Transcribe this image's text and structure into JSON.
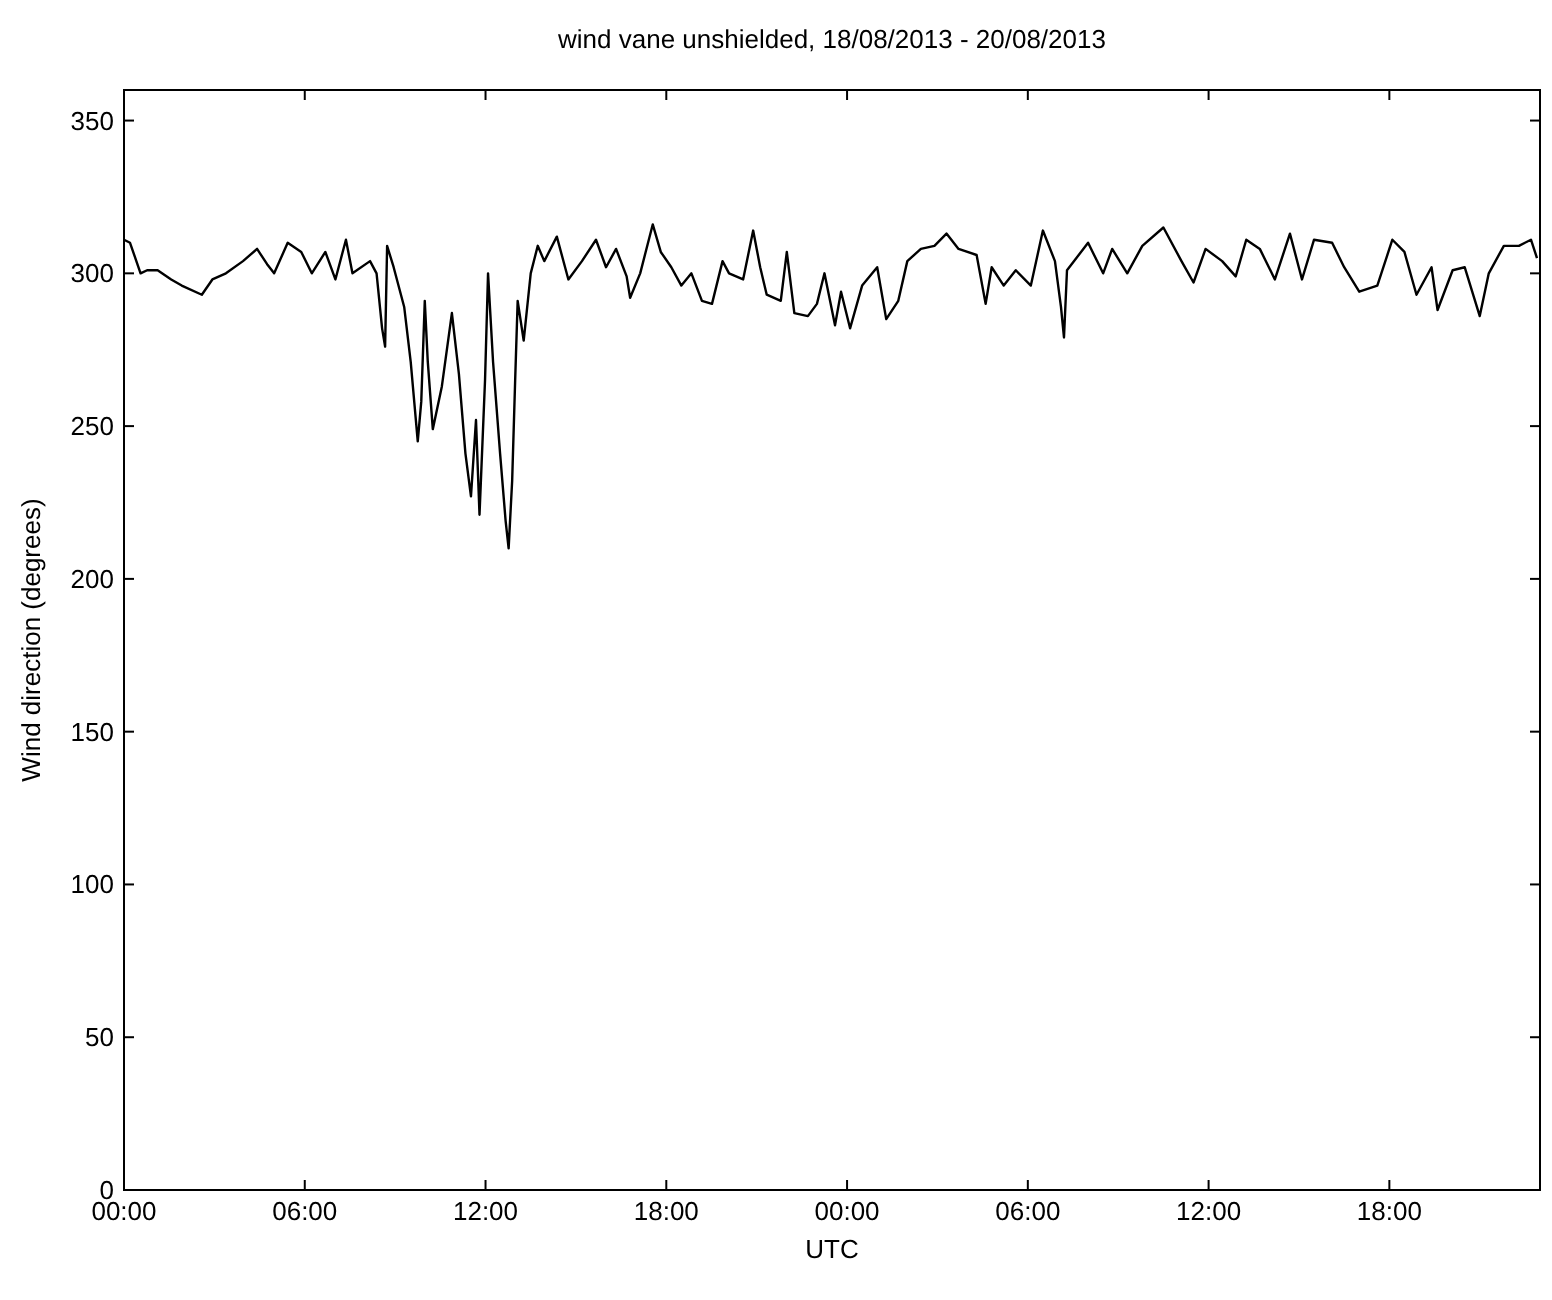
{
  "chart_data": {
    "type": "line",
    "title": "wind vane unshielded, 18/08/2013 - 20/08/2013",
    "xlabel": "UTC",
    "ylabel": "Wind direction (degrees)",
    "xlim": [
      "2013-08-18T00:00",
      "2013-08-19T23:00"
    ],
    "xticks": [
      {
        "value": "2013-08-18T00:00",
        "label": "00:00"
      },
      {
        "value": "2013-08-18T06:00",
        "label": "06:00"
      },
      {
        "value": "2013-08-18T12:00",
        "label": "12:00"
      },
      {
        "value": "2013-08-18T18:00",
        "label": "18:00"
      },
      {
        "value": "2013-08-19T00:00",
        "label": "00:00"
      },
      {
        "value": "2013-08-19T06:00",
        "label": "06:00"
      },
      {
        "value": "2013-08-19T12:00",
        "label": "12:00"
      },
      {
        "value": "2013-08-19T18:00",
        "label": "18:00"
      }
    ],
    "ylim": [
      0,
      360
    ],
    "yticks": [
      0,
      50,
      100,
      150,
      200,
      250,
      300,
      350
    ],
    "grid": false,
    "marker": "none",
    "line_style": "solid",
    "series": [
      {
        "color": "#000000",
        "x": [
          "2013-08-18T00:00",
          "2013-08-18T00:12",
          "2013-08-18T00:33",
          "2013-08-18T00:46",
          "2013-08-18T01:07",
          "2013-08-18T01:34",
          "2013-08-18T01:55",
          "2013-08-18T02:35",
          "2013-08-18T02:56",
          "2013-08-18T03:23",
          "2013-08-18T03:57",
          "2013-08-18T04:25",
          "2013-08-18T04:45",
          "2013-08-18T04:59",
          "2013-08-18T05:26",
          "2013-08-18T05:53",
          "2013-08-18T06:14",
          "2013-08-18T06:41",
          "2013-08-18T07:01",
          "2013-08-18T07:22",
          "2013-08-18T07:35",
          "2013-08-18T08:10",
          "2013-08-18T08:23",
          "2013-08-18T08:34",
          "2013-08-18T08:40",
          "2013-08-18T08:44",
          "2013-08-18T08:57",
          "2013-08-18T09:18",
          "2013-08-18T09:31",
          "2013-08-18T09:45",
          "2013-08-18T09:52",
          "2013-08-18T09:59",
          "2013-08-18T10:05",
          "2013-08-18T10:15",
          "2013-08-18T10:33",
          "2013-08-18T10:53",
          "2013-08-18T11:07",
          "2013-08-18T11:20",
          "2013-08-18T11:31",
          "2013-08-18T11:41",
          "2013-08-18T11:48",
          "2013-08-18T11:59",
          "2013-08-18T12:05",
          "2013-08-18T12:15",
          "2013-08-18T12:29",
          "2013-08-18T12:40",
          "2013-08-18T12:46",
          "2013-08-18T12:53",
          "2013-08-18T12:59",
          "2013-08-18T13:04",
          "2013-08-18T13:16",
          "2013-08-18T13:30",
          "2013-08-18T13:44",
          "2013-08-18T13:57",
          "2013-08-18T14:22",
          "2013-08-18T14:45",
          "2013-08-18T15:12",
          "2013-08-18T15:40",
          "2013-08-18T16:00",
          "2013-08-18T16:20",
          "2013-08-18T16:41",
          "2013-08-18T16:48",
          "2013-08-18T17:08",
          "2013-08-18T17:33",
          "2013-08-18T17:49",
          "2013-08-18T18:10",
          "2013-08-18T18:30",
          "2013-08-18T18:50",
          "2013-08-18T19:11",
          "2013-08-18T19:31",
          "2013-08-18T19:52",
          "2013-08-18T20:05",
          "2013-08-18T20:33",
          "2013-08-18T20:53",
          "2013-08-18T21:07",
          "2013-08-18T21:20",
          "2013-08-18T21:48",
          "2013-08-18T22:00",
          "2013-08-18T22:15",
          "2013-08-18T22:42",
          "2013-08-18T23:00",
          "2013-08-18T23:15",
          "2013-08-18T23:36",
          "2013-08-18T23:48",
          "2013-08-19T00:06",
          "2013-08-19T00:30",
          "2013-08-19T01:00",
          "2013-08-19T01:18",
          "2013-08-19T01:42",
          "2013-08-19T02:00",
          "2013-08-19T02:27",
          "2013-08-19T02:54",
          "2013-08-19T03:18",
          "2013-08-19T03:42",
          "2013-08-19T04:18",
          "2013-08-19T04:36",
          "2013-08-19T04:48",
          "2013-08-19T05:12",
          "2013-08-19T05:36",
          "2013-08-19T06:06",
          "2013-08-19T06:30",
          "2013-08-19T06:54",
          "2013-08-19T07:06",
          "2013-08-19T07:12",
          "2013-08-19T07:18",
          "2013-08-19T08:00",
          "2013-08-19T08:30",
          "2013-08-19T08:48",
          "2013-08-19T09:18",
          "2013-08-19T09:48",
          "2013-08-19T10:30",
          "2013-08-19T11:06",
          "2013-08-19T11:30",
          "2013-08-19T11:54",
          "2013-08-19T12:27",
          "2013-08-19T12:54",
          "2013-08-19T13:15",
          "2013-08-19T13:42",
          "2013-08-19T14:12",
          "2013-08-19T14:42",
          "2013-08-19T15:06",
          "2013-08-19T15:30",
          "2013-08-19T16:06",
          "2013-08-19T16:30",
          "2013-08-19T17:00",
          "2013-08-19T17:36",
          "2013-08-19T18:06",
          "2013-08-19T18:30",
          "2013-08-19T18:54",
          "2013-08-19T19:24",
          "2013-08-19T19:36",
          "2013-08-19T20:06",
          "2013-08-19T20:30",
          "2013-08-19T21:00",
          "2013-08-19T21:18",
          "2013-08-19T21:48",
          "2013-08-19T22:18",
          "2013-08-19T22:42",
          "2013-08-19T22:54"
        ],
        "values": [
          311,
          310,
          300,
          301,
          301,
          298,
          296,
          293,
          298,
          300,
          304,
          308,
          303,
          300,
          310,
          307,
          300,
          307,
          298,
          311,
          300,
          304,
          300,
          282,
          276,
          309,
          302,
          289,
          271,
          245,
          258,
          291,
          271,
          249,
          263,
          287,
          267,
          241,
          227,
          252,
          221,
          265,
          300,
          271,
          241,
          219,
          210,
          232,
          265,
          291,
          278,
          300,
          309,
          304,
          312,
          298,
          304,
          311,
          302,
          308,
          299,
          292,
          300,
          316,
          307,
          302,
          296,
          300,
          291,
          290,
          304,
          300,
          298,
          314,
          302,
          293,
          291,
          307,
          287,
          286,
          290,
          300,
          283,
          294,
          282,
          296,
          302,
          285,
          291,
          304,
          308,
          309,
          313,
          308,
          306,
          290,
          302,
          296,
          301,
          296,
          314,
          304,
          289,
          279,
          301,
          310,
          300,
          308,
          300,
          309,
          315,
          304,
          297,
          308,
          304,
          299,
          311,
          308,
          298,
          313,
          298,
          311,
          310,
          302,
          294,
          296,
          311,
          307,
          293,
          302,
          288,
          301,
          302,
          286,
          300,
          309,
          309,
          311,
          305
        ]
      }
    ]
  }
}
